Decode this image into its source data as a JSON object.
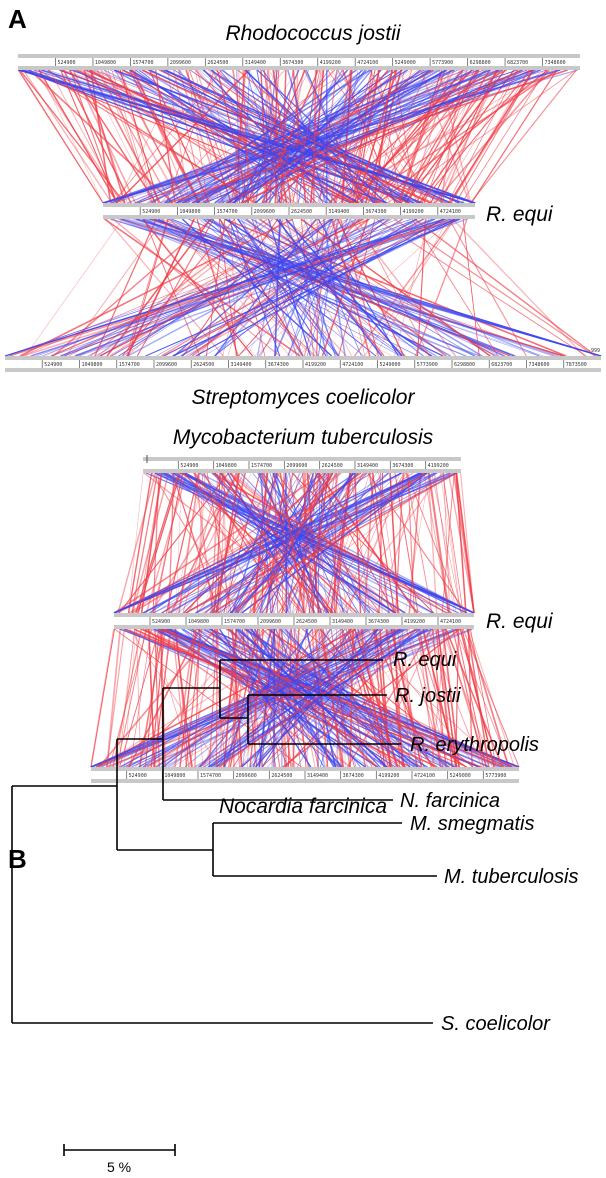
{
  "panel_a": {
    "letter": "A",
    "comparison_1": {
      "top_genome": {
        "name": "Rhodococcus jostii",
        "ticks": [
          "524900",
          "1049800",
          "1574700",
          "2099600",
          "2624500",
          "3149400",
          "3674300",
          "4199200",
          "4724100",
          "5249000",
          "5773900",
          "6298800",
          "6823700",
          "7348600"
        ]
      },
      "middle_genome": {
        "name": "R. equi",
        "ticks": [
          "524900",
          "1049800",
          "1574700",
          "2099600",
          "2624500",
          "3149400",
          "3674300",
          "4199200",
          "4724100"
        ]
      },
      "bottom_genome": {
        "name": "Streptomyces coelicolor",
        "ticks": [
          "524900",
          "1049800",
          "1574700",
          "2099600",
          "2624500",
          "3149400",
          "3674300",
          "4199200",
          "4724100",
          "5249000",
          "5773900",
          "6298800",
          "6823700",
          "7348600",
          "7873500"
        ]
      },
      "bottom_end_label": "-999"
    },
    "comparison_2": {
      "top_genome": {
        "name": "Mycobacterium tuberculosis",
        "ticks": [
          "524900",
          "1049800",
          "1574700",
          "2099600",
          "2624500",
          "3149400",
          "3674300",
          "4199200"
        ]
      },
      "middle_genome": {
        "name": "R. equi",
        "ticks": [
          "524900",
          "1049800",
          "1574700",
          "2099600",
          "2624500",
          "3149400",
          "3674300",
          "4199200",
          "4724100"
        ]
      },
      "bottom_genome": {
        "name": "Nocardia farcinica",
        "ticks": [
          "524900",
          "1049800",
          "1574700",
          "2099600",
          "2624500",
          "3149400",
          "3674300",
          "4199200",
          "4724100",
          "5249000",
          "5773900"
        ]
      }
    },
    "colors": {
      "direct_match": "#f03c46",
      "inverted_match": "#3c46f0",
      "genome_bar": "#c8c8c8"
    }
  },
  "panel_b": {
    "letter": "B",
    "tree": {
      "leaves": [
        "R. equi",
        "R. jostii",
        "R. erythropolis",
        "N. farcinica",
        "M. smegmatis",
        "M. tuberculosis",
        "S. coelicolor"
      ]
    },
    "scale_bar_label": "5 %"
  }
}
